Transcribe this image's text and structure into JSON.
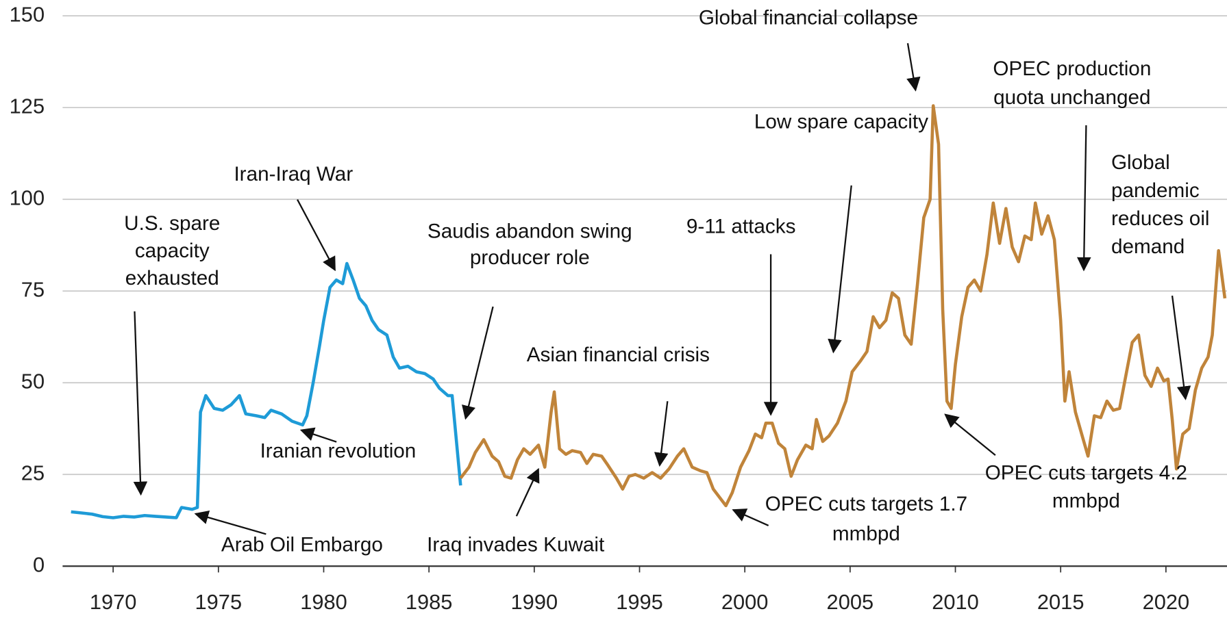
{
  "chart_data": {
    "type": "line",
    "xlim": [
      1967.6,
      2022.9
    ],
    "xticks": [
      1970,
      1975,
      1980,
      1985,
      1990,
      1995,
      2000,
      2005,
      2010,
      2015,
      2020
    ],
    "ylim": [
      0,
      150
    ],
    "yticks": [
      0,
      25,
      50,
      75,
      100,
      125,
      150
    ],
    "grid": true,
    "series": [
      {
        "color": "#1e9bd7",
        "x": [
          1968,
          1968.5,
          1969,
          1969.5,
          1970,
          1970.5,
          1971,
          1971.5,
          1972,
          1972.5,
          1973,
          1973.25,
          1973.75,
          1974,
          1974.15,
          1974.4,
          1974.8,
          1975.2,
          1975.6,
          1976,
          1976.3,
          1976.8,
          1977.2,
          1977.5,
          1978,
          1978.5,
          1979,
          1979.2,
          1979.5,
          1979.8,
          1980,
          1980.3,
          1980.6,
          1980.9,
          1981.1,
          1981.4,
          1981.7,
          1982,
          1982.3,
          1982.6,
          1983,
          1983.3,
          1983.6,
          1984,
          1984.4,
          1984.8,
          1985.2,
          1985.5,
          1985.9,
          1986.1,
          1986.5
        ],
        "values": [
          14.8,
          14.5,
          14.2,
          13.5,
          13.2,
          13.6,
          13.4,
          13.8,
          13.6,
          13.4,
          13.2,
          16,
          15.5,
          16,
          42,
          46.5,
          43,
          42.5,
          44,
          46.5,
          41.5,
          41,
          40.5,
          42.5,
          41.5,
          39.5,
          38.5,
          41,
          50,
          60,
          67,
          76,
          78,
          77,
          82.5,
          78,
          73,
          71,
          67,
          64.5,
          63,
          57,
          54,
          54.5,
          53,
          52.5,
          51,
          48.5,
          46.5,
          46.5,
          22
        ]
      },
      {
        "color": "#c0843a",
        "x": [
          1986.5,
          1986.9,
          1987.2,
          1987.6,
          1988,
          1988.3,
          1988.6,
          1988.9,
          1989.2,
          1989.5,
          1989.8,
          1990.2,
          1990.5,
          1990.8,
          1990.95,
          1991.2,
          1991.5,
          1991.8,
          1992.2,
          1992.5,
          1992.8,
          1993.2,
          1993.5,
          1993.9,
          1994.2,
          1994.5,
          1994.8,
          1995.2,
          1995.6,
          1996,
          1996.4,
          1996.8,
          1997.1,
          1997.5,
          1997.9,
          1998.2,
          1998.5,
          1998.9,
          1999.1,
          1999.4,
          1999.8,
          2000.2,
          2000.5,
          2000.8,
          2001,
          2001.3,
          2001.6,
          2001.9,
          2002.2,
          2002.5,
          2002.9,
          2003.2,
          2003.4,
          2003.7,
          2004,
          2004.4,
          2004.8,
          2005.1,
          2005.5,
          2005.8,
          2006.1,
          2006.4,
          2006.7,
          2007,
          2007.3,
          2007.6,
          2007.9,
          2008.2,
          2008.5,
          2008.8,
          2008.95,
          2009.2,
          2009.4,
          2009.6,
          2009.8,
          2010,
          2010.3,
          2010.6,
          2010.9,
          2011.2,
          2011.5,
          2011.8,
          2012.1,
          2012.4,
          2012.7,
          2013,
          2013.3,
          2013.6,
          2013.8,
          2014.1,
          2014.4,
          2014.7,
          2015,
          2015.2,
          2015.4,
          2015.7,
          2016,
          2016.3,
          2016.6,
          2016.9,
          2017.2,
          2017.5,
          2017.8,
          2018.1,
          2018.4,
          2018.7,
          2019,
          2019.3,
          2019.6,
          2019.9,
          2020.1,
          2020.3,
          2020.5,
          2020.8,
          2021.1,
          2021.4,
          2021.7,
          2022,
          2022.2,
          2022.5,
          2022.8
        ],
        "values": [
          24,
          27,
          31,
          34.5,
          30,
          28.5,
          24.5,
          24,
          29,
          32,
          30.5,
          33,
          27,
          42,
          47.5,
          32,
          30.5,
          31.5,
          31,
          28,
          30.5,
          30,
          27.5,
          24,
          21,
          24.5,
          25,
          24,
          25.5,
          24,
          26.5,
          30,
          32,
          27,
          26,
          25.5,
          21,
          18,
          16.5,
          20,
          27,
          31.5,
          36,
          35,
          39,
          39,
          33.5,
          32,
          24.5,
          29,
          33,
          32,
          40,
          34,
          35.5,
          39,
          45,
          53,
          56,
          58.5,
          68,
          65,
          67,
          74.5,
          73,
          63,
          60.5,
          77,
          95,
          100,
          125.5,
          115,
          70,
          45,
          43,
          55,
          68,
          76,
          78,
          75,
          85,
          99,
          88,
          97.5,
          87,
          83,
          90,
          89,
          99,
          90.5,
          95.5,
          89,
          67,
          45,
          53,
          42,
          36,
          30,
          41,
          40.5,
          45,
          42.5,
          43,
          52,
          61,
          63,
          52,
          49,
          54,
          50.5,
          51,
          40,
          26.5,
          36,
          37.5,
          48,
          54,
          57,
          63,
          86,
          73
        ]
      }
    ],
    "annotations": [
      {
        "lines": [
          "U.S. spare",
          "capacity",
          "exhausted"
        ]
      },
      {
        "lines": [
          "Iran-Iraq War"
        ]
      },
      {
        "lines": [
          "Saudis abandon swing",
          "producer role"
        ]
      },
      {
        "lines": [
          "Asian financial crisis"
        ]
      },
      {
        "lines": [
          "9-11 attacks"
        ]
      },
      {
        "lines": [
          "Low spare capacity"
        ]
      },
      {
        "lines": [
          "Global financial collapse"
        ]
      },
      {
        "lines": [
          "OPEC production",
          "quota unchanged"
        ]
      },
      {
        "lines": [
          "Global",
          "pandemic",
          "reduces oil",
          "demand"
        ]
      },
      {
        "lines": [
          "Iranian revolution"
        ]
      },
      {
        "lines": [
          "Arab Oil Embargo"
        ]
      },
      {
        "lines": [
          "Iraq invades Kuwait"
        ]
      },
      {
        "lines": [
          "OPEC cuts targets 1.7",
          "mmbpd"
        ]
      },
      {
        "lines": [
          "OPEC cuts targets 4.2",
          "mmbpd"
        ]
      }
    ]
  }
}
